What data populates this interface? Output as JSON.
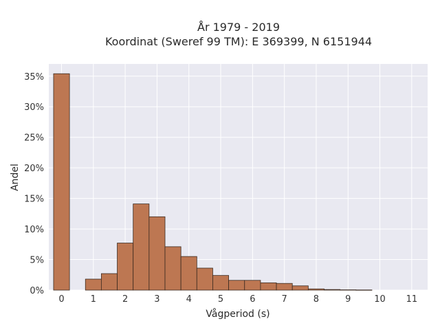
{
  "chart_data": {
    "type": "bar",
    "title": "År 1979 - 2019",
    "subtitle": "Koordinat (Sweref 99 TM): E 369399, N 6151944",
    "xlabel": "Vågperiod (s)",
    "ylabel": "Andel",
    "xlim": [
      -0.4,
      11.5
    ],
    "ylim": [
      0,
      0.37
    ],
    "x_ticks": [
      0,
      1,
      2,
      3,
      4,
      5,
      6,
      7,
      8,
      9,
      10,
      11
    ],
    "x_tick_labels": [
      "0",
      "1",
      "2",
      "3",
      "4",
      "5",
      "6",
      "7",
      "8",
      "9",
      "10",
      "11"
    ],
    "y_ticks": [
      0,
      0.05,
      0.1,
      0.15,
      0.2,
      0.25,
      0.3,
      0.35
    ],
    "y_tick_labels": [
      "0%",
      "5%",
      "10%",
      "15%",
      "20%",
      "25%",
      "30%",
      "35%"
    ],
    "grid": true,
    "bar_width": 0.5,
    "bars": [
      {
        "x": 0.0,
        "value": 0.354
      },
      {
        "x": 1.0,
        "value": 0.018
      },
      {
        "x": 1.5,
        "value": 0.027
      },
      {
        "x": 2.0,
        "value": 0.077
      },
      {
        "x": 2.5,
        "value": 0.141
      },
      {
        "x": 3.0,
        "value": 0.12
      },
      {
        "x": 3.5,
        "value": 0.071
      },
      {
        "x": 4.0,
        "value": 0.055
      },
      {
        "x": 4.5,
        "value": 0.036
      },
      {
        "x": 5.0,
        "value": 0.024
      },
      {
        "x": 5.5,
        "value": 0.016
      },
      {
        "x": 6.0,
        "value": 0.016
      },
      {
        "x": 6.5,
        "value": 0.012
      },
      {
        "x": 7.0,
        "value": 0.011
      },
      {
        "x": 7.5,
        "value": 0.007
      },
      {
        "x": 8.0,
        "value": 0.002
      },
      {
        "x": 8.5,
        "value": 0.001
      },
      {
        "x": 9.0,
        "value": 0.0005
      },
      {
        "x": 9.5,
        "value": 0.0003
      }
    ],
    "bar_color": "#bd7752",
    "bar_edge_color": "#3a2a20",
    "plot_background": "#e9e9f1"
  }
}
